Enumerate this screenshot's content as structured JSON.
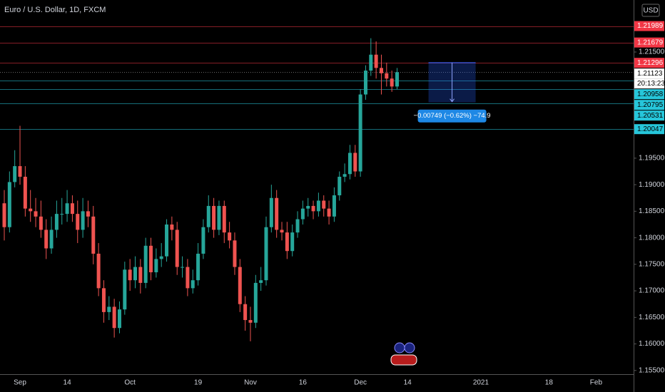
{
  "chart_data": {
    "type": "candlestick",
    "title": "Euro / U.S. Dollar, 1D, FXCM",
    "currency": "USD",
    "up_color": "#26a69a",
    "down_color": "#ef5350",
    "categories": [
      null,
      null,
      null,
      "Sep",
      null,
      null,
      null,
      null,
      null,
      null,
      null,
      null,
      "14",
      null,
      null,
      null,
      null,
      null,
      null,
      null,
      null,
      null,
      null,
      null,
      "Oct",
      null,
      null,
      null,
      null,
      null,
      null,
      null,
      null,
      null,
      null,
      null,
      null,
      "19",
      null,
      null,
      null,
      null,
      null,
      null,
      null,
      null,
      null,
      "Nov",
      null,
      null,
      null,
      null,
      null,
      null,
      null,
      null,
      null,
      "16",
      null,
      null,
      null,
      null,
      null,
      null,
      null,
      null,
      null,
      null,
      "Dec",
      null,
      null,
      null,
      null,
      null,
      null,
      null,
      null,
      "14",
      null,
      null,
      null,
      null,
      null,
      null,
      null,
      null,
      null,
      null,
      null,
      null,
      null,
      "2021",
      null,
      null,
      null,
      null,
      null,
      null,
      null,
      null,
      null,
      null,
      null,
      null,
      "18",
      null,
      null,
      null,
      null,
      null,
      null,
      null,
      null,
      "Feb",
      null,
      null,
      null
    ],
    "open": [
      1.1865,
      1.182,
      1.1905,
      1.1935,
      1.1915,
      1.1855,
      1.185,
      1.184,
      1.1815,
      1.178,
      1.1815,
      1.1845,
      1.1845,
      1.1865,
      1.1845,
      1.1815,
      1.185,
      1.184,
      1.177,
      1.1705,
      1.166,
      1.167,
      1.163,
      1.1665,
      1.174,
      1.172,
      1.1745,
      1.1715,
      1.1785,
      1.1735,
      1.176,
      1.1765,
      1.1825,
      1.1815,
      1.1745,
      1.1745,
      1.1705,
      1.172,
      1.177,
      1.182,
      1.186,
      1.1815,
      1.186,
      1.181,
      1.1795,
      1.1745,
      1.1675,
      1.1645,
      1.164,
      1.1715,
      1.172,
      1.182,
      1.1875,
      1.1815,
      1.181,
      1.1775,
      1.181,
      1.1835,
      1.1855,
      1.186,
      1.185,
      1.187,
      1.1855,
      1.184,
      1.188,
      1.1915,
      1.192,
      1.196,
      1.1925,
      1.207,
      1.2115,
      1.2145,
      1.212,
      1.211,
      1.21,
      1.2085,
      null,
      null,
      null,
      null,
      null,
      null,
      null,
      null,
      null,
      null,
      null,
      null,
      null,
      null,
      null,
      null,
      null,
      null,
      null,
      null,
      null,
      null,
      null,
      null,
      null,
      null,
      null,
      null,
      null,
      null,
      null,
      null,
      null,
      null,
      null,
      null,
      null,
      null,
      null,
      null,
      null
    ],
    "high": [
      1.189,
      1.1925,
      1.1965,
      1.2011,
      1.1935,
      1.189,
      1.1875,
      1.187,
      1.1835,
      1.184,
      1.187,
      1.1875,
      1.189,
      1.188,
      1.187,
      1.1875,
      1.187,
      1.186,
      1.179,
      1.172,
      1.169,
      1.1685,
      1.168,
      1.1755,
      1.176,
      1.1765,
      1.176,
      1.18,
      1.18,
      1.178,
      1.179,
      1.1835,
      1.184,
      1.183,
      1.1765,
      1.176,
      1.174,
      1.179,
      1.1835,
      1.188,
      1.1875,
      1.187,
      1.187,
      1.183,
      1.181,
      1.176,
      1.169,
      1.167,
      1.173,
      1.1745,
      1.184,
      1.19,
      1.189,
      1.183,
      1.183,
      1.1825,
      1.185,
      1.187,
      1.1875,
      1.187,
      1.1885,
      1.188,
      1.187,
      1.1895,
      1.1925,
      1.194,
      1.1975,
      1.1975,
      1.208,
      1.2125,
      1.2176,
      1.217,
      1.2145,
      1.213,
      1.2115,
      1.212,
      null,
      null,
      null,
      null,
      null,
      null,
      null,
      null,
      null,
      null,
      null,
      null,
      null,
      null,
      null,
      null,
      null,
      null,
      null,
      null,
      null,
      null,
      null,
      null,
      null,
      null,
      null,
      null,
      null,
      null,
      null,
      null,
      null,
      null,
      null,
      null,
      null,
      null,
      null,
      null,
      null
    ],
    "low": [
      1.1795,
      1.181,
      1.1895,
      1.19,
      1.184,
      1.183,
      1.182,
      1.18,
      1.176,
      1.177,
      1.18,
      1.1825,
      1.183,
      1.183,
      1.179,
      1.18,
      1.182,
      1.175,
      1.169,
      1.164,
      1.1645,
      1.1612,
      1.162,
      1.1655,
      1.17,
      1.1705,
      1.1695,
      1.1705,
      1.172,
      1.1725,
      1.1745,
      1.1755,
      1.1795,
      1.173,
      1.1725,
      1.169,
      1.1695,
      1.171,
      1.176,
      1.181,
      1.18,
      1.1805,
      1.179,
      1.178,
      1.173,
      1.166,
      1.1625,
      1.1605,
      1.163,
      1.17,
      1.171,
      1.181,
      1.18,
      1.1795,
      1.176,
      1.1765,
      1.18,
      1.1825,
      1.184,
      1.1835,
      1.184,
      1.184,
      1.1825,
      1.183,
      1.187,
      1.1905,
      1.191,
      1.1915,
      1.1915,
      1.206,
      1.2105,
      1.21,
      1.207,
      1.2085,
      1.2075,
      1.208,
      null,
      null,
      null,
      null,
      null,
      null,
      null,
      null,
      null,
      null,
      null,
      null,
      null,
      null,
      null,
      null,
      null,
      null,
      null,
      null,
      null,
      null,
      null,
      null,
      null,
      null,
      null,
      null,
      null,
      null,
      null,
      null,
      null,
      null,
      null,
      null,
      null,
      null,
      null,
      null,
      null
    ],
    "close": [
      1.182,
      1.1905,
      1.1935,
      1.1915,
      1.1855,
      1.185,
      1.184,
      1.1815,
      1.178,
      1.1815,
      1.1845,
      1.1845,
      1.1865,
      1.1845,
      1.1815,
      1.185,
      1.184,
      1.177,
      1.1705,
      1.166,
      1.167,
      1.163,
      1.1665,
      1.174,
      1.172,
      1.1745,
      1.1715,
      1.1785,
      1.1735,
      1.176,
      1.1765,
      1.1825,
      1.1815,
      1.1745,
      1.1745,
      1.1705,
      1.172,
      1.177,
      1.182,
      1.186,
      1.1815,
      1.186,
      1.181,
      1.1795,
      1.1745,
      1.1675,
      1.1645,
      1.164,
      1.1715,
      1.172,
      1.182,
      1.1875,
      1.1815,
      1.181,
      1.1775,
      1.181,
      1.1835,
      1.1855,
      1.186,
      1.185,
      1.187,
      1.1855,
      1.184,
      1.188,
      1.1915,
      1.192,
      1.196,
      1.1925,
      1.207,
      1.2115,
      1.2145,
      1.212,
      1.211,
      1.21,
      1.2085,
      1.2112,
      null,
      null,
      null,
      null,
      null,
      null,
      null,
      null,
      null,
      null,
      null,
      null,
      null,
      null,
      null,
      null,
      null,
      null,
      null,
      null,
      null,
      null,
      null,
      null,
      null,
      null,
      null,
      null,
      null,
      null,
      null,
      null,
      null,
      null,
      null,
      null,
      null,
      null,
      null,
      null,
      null
    ],
    "ylim": [
      1.1543,
      1.2248
    ],
    "yticks": [
      {
        "value": 1.215,
        "label": "1.21500"
      },
      {
        "value": 1.195,
        "label": "1.19500"
      },
      {
        "value": 1.19,
        "label": "1.19000"
      },
      {
        "value": 1.185,
        "label": "1.18500"
      },
      {
        "value": 1.18,
        "label": "1.18000"
      },
      {
        "value": 1.175,
        "label": "1.17500"
      },
      {
        "value": 1.17,
        "label": "1.17000"
      },
      {
        "value": 1.165,
        "label": "1.16500"
      },
      {
        "value": 1.16,
        "label": "1.16000"
      },
      {
        "value": 1.155,
        "label": "1.15500"
      }
    ],
    "levels": [
      {
        "value": 1.21989,
        "color": "#f23645"
      },
      {
        "value": 1.21679,
        "color": "#f23645"
      },
      {
        "value": 1.21296,
        "color": "#f23645"
      },
      {
        "value": 1.21123,
        "color": "#ffffff",
        "countdown": "20:13:23"
      },
      {
        "value": 1.20958,
        "color": "#26c6da"
      },
      {
        "value": 1.20795,
        "color": "#26c6da"
      },
      {
        "value": 1.20531,
        "color": "#26c6da"
      },
      {
        "value": 1.20047,
        "color": "#26c6da"
      }
    ],
    "position": {
      "from": 1.213,
      "to": 1.2055,
      "label": "−0.00749 (−0.62%) −74.9"
    }
  }
}
